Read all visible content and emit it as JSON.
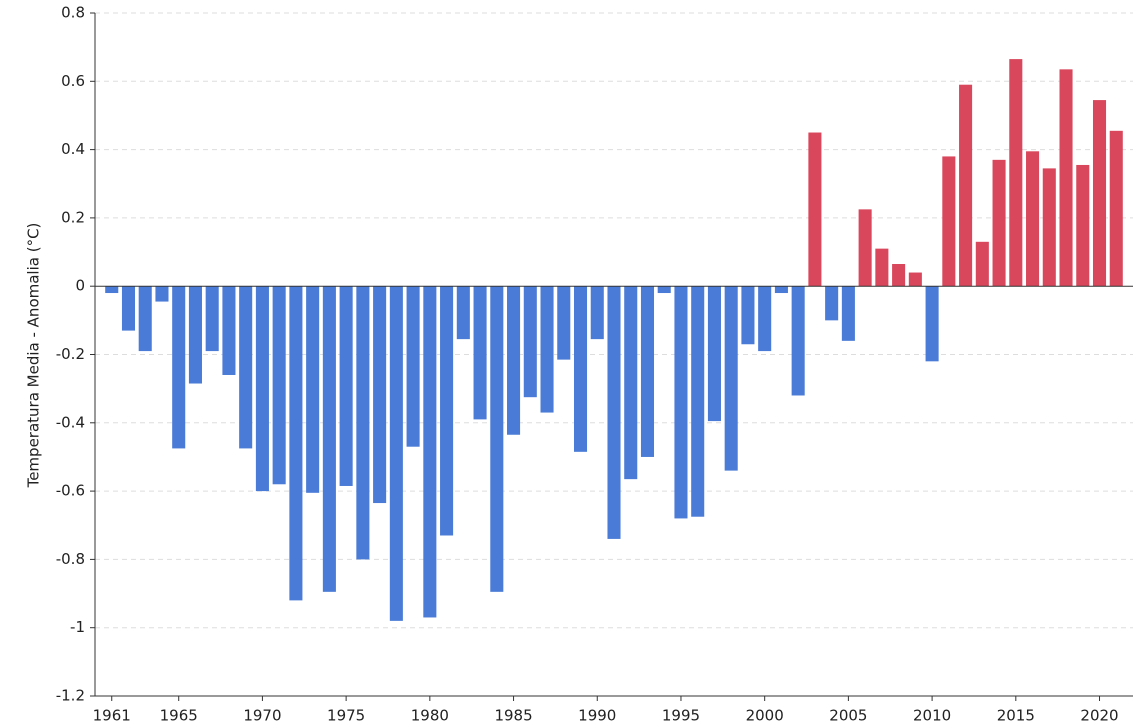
{
  "chart_data": {
    "type": "bar",
    "y_label": "Temperatura Media - Anomalia (°C)",
    "x": [
      1961,
      1962,
      1963,
      1964,
      1965,
      1966,
      1967,
      1968,
      1969,
      1970,
      1971,
      1972,
      1973,
      1974,
      1975,
      1976,
      1977,
      1978,
      1979,
      1980,
      1981,
      1982,
      1983,
      1984,
      1985,
      1986,
      1987,
      1988,
      1989,
      1990,
      1991,
      1992,
      1993,
      1994,
      1995,
      1996,
      1997,
      1998,
      1999,
      2000,
      2001,
      2002,
      2003,
      2004,
      2005,
      2006,
      2007,
      2008,
      2009,
      2010,
      2011,
      2012,
      2013,
      2014,
      2015,
      2016,
      2017,
      2018,
      2019,
      2020,
      2021
    ],
    "values": [
      -0.02,
      -0.13,
      -0.19,
      -0.045,
      -0.475,
      -0.285,
      -0.19,
      -0.26,
      -0.475,
      -0.6,
      -0.58,
      -0.92,
      -0.605,
      -0.895,
      -0.585,
      -0.8,
      -0.635,
      -0.98,
      -0.47,
      -0.97,
      -0.73,
      -0.155,
      -0.39,
      -0.895,
      -0.435,
      -0.325,
      -0.37,
      -0.215,
      -0.485,
      -0.155,
      -0.74,
      -0.565,
      -0.5,
      -0.02,
      -0.68,
      -0.675,
      -0.395,
      -0.54,
      -0.17,
      -0.19,
      -0.02,
      -0.32,
      0.45,
      -0.1,
      -0.16,
      0.225,
      0.11,
      0.065,
      0.04,
      -0.22,
      0.38,
      0.59,
      0.13,
      0.37,
      0.665,
      0.395,
      0.345,
      0.635,
      0.355,
      0.545,
      0.455
    ],
    "color_positive": "#d9475c",
    "color_negative": "#4a7bd6",
    "xlim": [
      1960,
      2022
    ],
    "xticks": [
      1961,
      1965,
      1970,
      1975,
      1980,
      1985,
      1990,
      1995,
      2000,
      2005,
      2010,
      2015,
      2020
    ],
    "ylim": [
      -1.2,
      0.8
    ],
    "yticks": [
      -1.2,
      -1,
      -0.8,
      -0.6,
      -0.4,
      -0.2,
      0,
      0.2,
      0.4,
      0.6,
      0.8
    ],
    "grid": true
  }
}
